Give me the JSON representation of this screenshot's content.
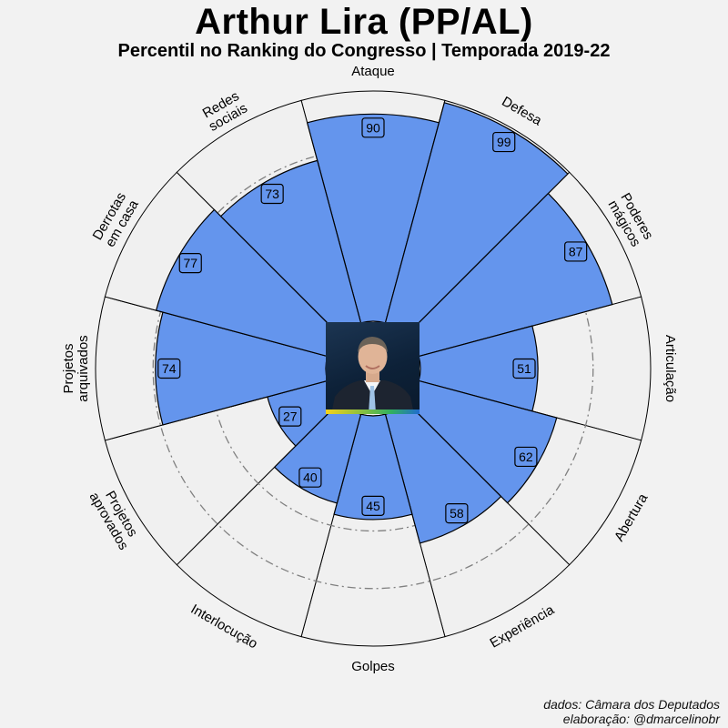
{
  "title": "Arthur Lira (PP/AL)",
  "subtitle": "Percentil no Ranking do Congresso | Temporada 2019-22",
  "caption": {
    "line1": "dados: Câmara dos Deputados",
    "line2": "elaboração: @dmarcelinobr"
  },
  "portrait": {
    "icon": "person-portrait-photo",
    "flag_colors": [
      "#f5d21a",
      "#30b060",
      "#1f6bd0"
    ]
  },
  "colors": {
    "bar_fill": "#6495ed",
    "bar_stroke": "#000000",
    "background": "#f2f2f2",
    "panel": "#f0f0f0",
    "reference_circle": "#808080"
  },
  "chart_data": {
    "type": "polar-bar",
    "ylim": [
      0,
      100
    ],
    "reference_circles": [
      25,
      50,
      75
    ],
    "categories": [
      "Ataque",
      "Defesa",
      "Poderes mágicos",
      "Articulação",
      "Abertura",
      "Experiência",
      "Golpes",
      "Interlocução",
      "Projetos aprovados",
      "Projetos arquivados",
      "Derrotas em casa",
      "Redes sociais"
    ],
    "values": [
      90,
      99,
      87,
      51,
      62,
      58,
      45,
      40,
      27,
      74,
      77,
      73
    ]
  }
}
